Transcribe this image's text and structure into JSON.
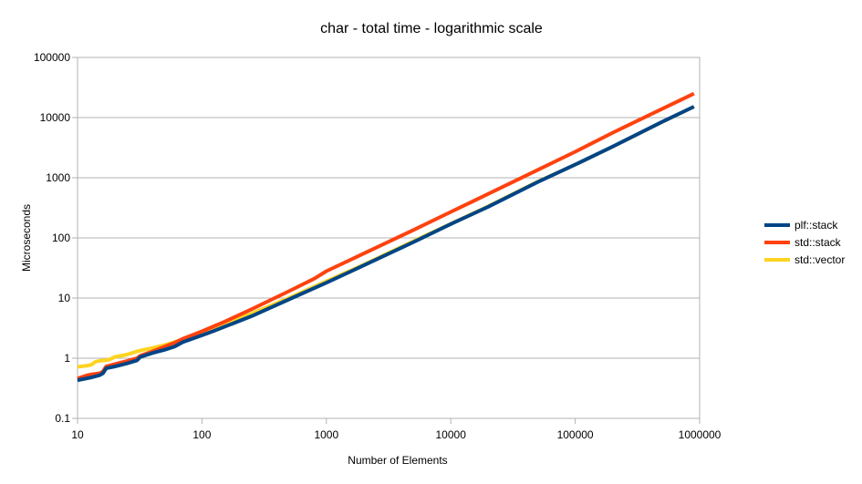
{
  "chart_data": {
    "type": "line",
    "title": "char - total time - logarithmic scale",
    "xlabel": "Number of Elements",
    "ylabel": "Microseconds",
    "x_scale": "log",
    "y_scale": "log",
    "xlim": [
      10,
      1000000
    ],
    "ylim": [
      0.1,
      100000
    ],
    "x_ticks": [
      10,
      100,
      1000,
      10000,
      100000,
      1000000
    ],
    "x_tick_labels": [
      "10",
      "100",
      "1000",
      "10000",
      "100000",
      "1000000"
    ],
    "y_ticks": [
      0.1,
      1,
      10,
      100,
      1000,
      10000,
      100000
    ],
    "y_tick_labels": [
      "0.1",
      "1",
      "10",
      "100",
      "1000",
      "10000",
      "100000"
    ],
    "grid": "horizontal",
    "legend_position": "right",
    "series": [
      {
        "name": "plf::stack",
        "color": "#004586",
        "x": [
          10,
          13,
          15,
          16,
          17,
          20,
          25,
          30,
          32,
          40,
          50,
          60,
          70,
          100,
          125,
          150,
          250,
          500,
          1000,
          2000,
          5000,
          10000,
          20000,
          50000,
          100000,
          200000,
          500000,
          900000
        ],
        "y": [
          0.43,
          0.48,
          0.52,
          0.56,
          0.68,
          0.73,
          0.82,
          0.92,
          1.05,
          1.22,
          1.38,
          1.55,
          1.85,
          2.4,
          2.85,
          3.3,
          5,
          9.5,
          18,
          35,
          85,
          170,
          330,
          850,
          1650,
          3300,
          8500,
          15200
        ]
      },
      {
        "name": "std::stack",
        "color": "#ff420e",
        "x": [
          10,
          12,
          13,
          15,
          16,
          17,
          20,
          25,
          30,
          32,
          40,
          50,
          60,
          70,
          100,
          125,
          150,
          250,
          500,
          800,
          1000,
          2000,
          5000,
          10000,
          20000,
          50000,
          100000,
          200000,
          500000,
          900000
        ],
        "y": [
          0.46,
          0.52,
          0.54,
          0.56,
          0.6,
          0.73,
          0.8,
          0.9,
          1.0,
          1.1,
          1.3,
          1.55,
          1.8,
          2.1,
          2.8,
          3.4,
          4.0,
          6.5,
          13,
          21,
          28,
          55,
          135,
          270,
          540,
          1350,
          2700,
          5600,
          14000,
          25000
        ]
      },
      {
        "name": "std::vector",
        "color": "#ffd320",
        "x": [
          10,
          12,
          13,
          14,
          16,
          17,
          18,
          20,
          25,
          30,
          35,
          40,
          50,
          60,
          70,
          100,
          125,
          150,
          250,
          500,
          1000,
          2000,
          5000,
          10000,
          20000,
          50000,
          100000,
          200000,
          500000,
          900000
        ],
        "y": [
          0.72,
          0.75,
          0.78,
          0.88,
          0.92,
          0.93,
          0.95,
          1.05,
          1.15,
          1.3,
          1.4,
          1.48,
          1.65,
          1.85,
          2.05,
          2.7,
          3.1,
          3.6,
          5.5,
          10,
          19,
          36,
          88,
          172,
          335,
          860,
          1650,
          3300,
          8500,
          15200
        ]
      }
    ]
  }
}
